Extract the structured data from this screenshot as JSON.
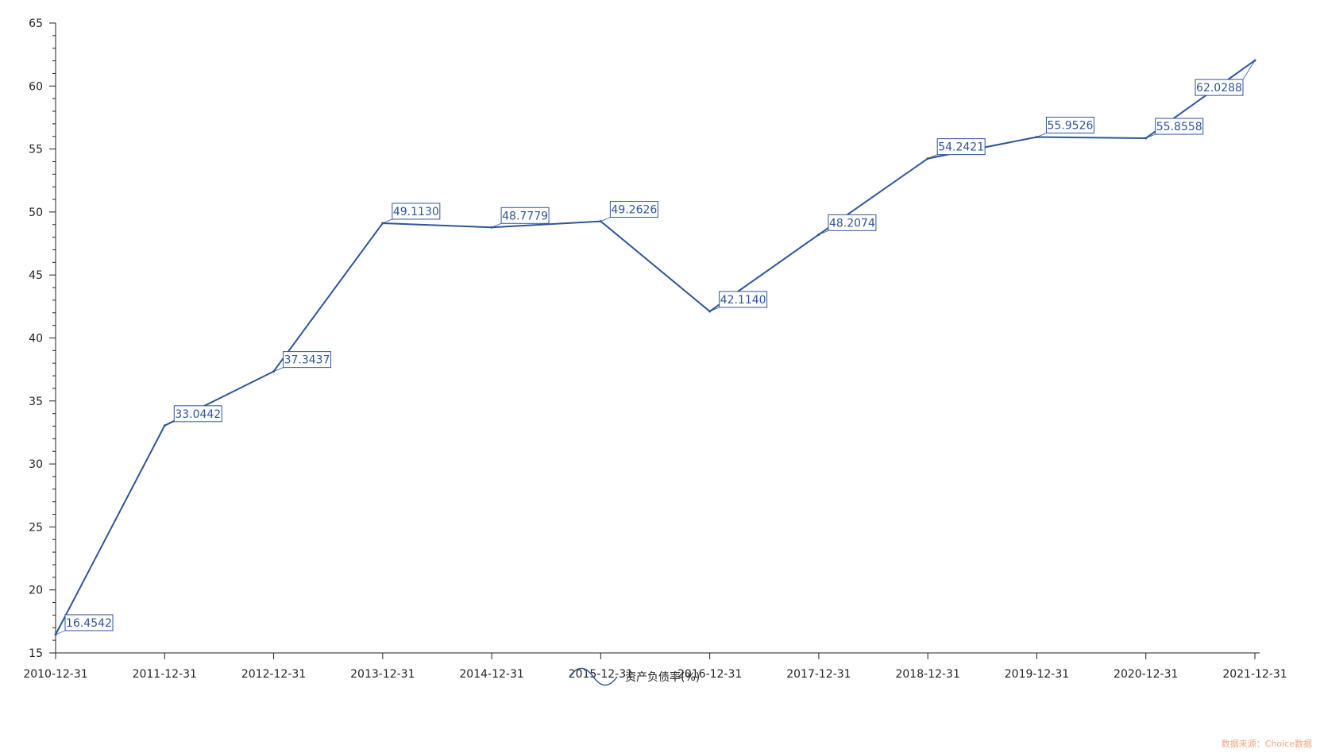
{
  "chart_data": {
    "type": "line",
    "title": "",
    "xlabel": "",
    "ylabel": "",
    "categories": [
      "2010-12-31",
      "2011-12-31",
      "2012-12-31",
      "2013-12-31",
      "2014-12-31",
      "2015-12-31",
      "2016-12-31",
      "2017-12-31",
      "2018-12-31",
      "2019-12-31",
      "2020-12-31",
      "2021-12-31"
    ],
    "series": [
      {
        "name": "资产负债率(%)",
        "values": [
          16.4542,
          33.0442,
          37.3437,
          49.113,
          48.7779,
          49.2626,
          42.114,
          48.2074,
          54.2421,
          55.9526,
          55.8558,
          62.0288
        ],
        "labels": [
          "16.4542",
          "33.0442",
          "37.3437",
          "49.1130",
          "48.7779",
          "49.2626",
          "42.1140",
          "48.2074",
          "54.2421",
          "55.9526",
          "55.8558",
          "62.0288"
        ],
        "color": "#2f5597"
      }
    ],
    "ylim": [
      15,
      65
    ],
    "yticks": [
      15,
      20,
      25,
      30,
      35,
      40,
      45,
      50,
      55,
      60,
      65
    ],
    "grid": false,
    "legend_position": "bottom-center"
  },
  "legend": {
    "label": "资产负债率(%)"
  },
  "source": {
    "text": "数据来源：Choice数据"
  },
  "colors": {
    "line": "#2f5597",
    "axis": "#222222",
    "source": "#f4a582"
  }
}
